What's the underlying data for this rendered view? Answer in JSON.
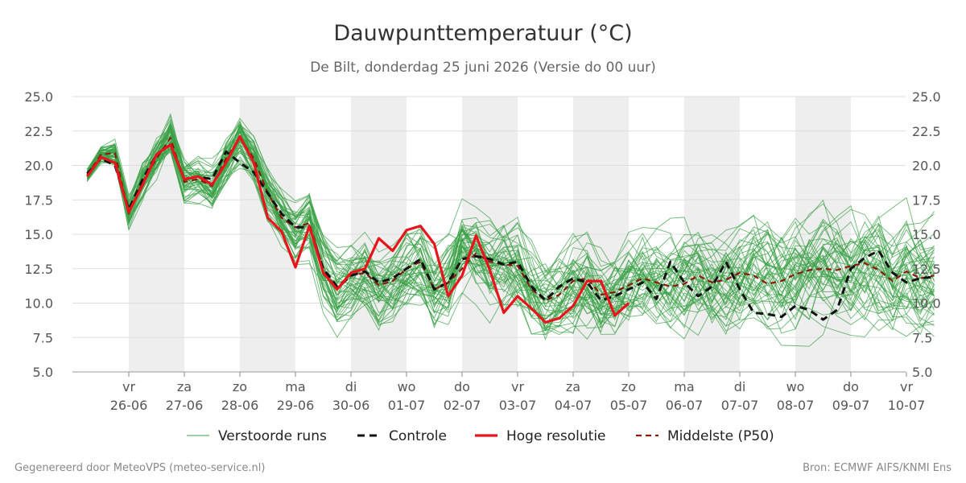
{
  "title": "Dauwpunttemperatuur (°C)",
  "subtitle": "De Bilt, donderdag 25 juni 2026 (Versie do 00 uur)",
  "footer": {
    "left": "Gegenereerd door MeteoVPS (meteo-service.nl)",
    "right": "Bron: ECMWF AIFS/KNMI Ens"
  },
  "chart_data": {
    "type": "line",
    "ylim": [
      5.0,
      25.0
    ],
    "yticks": [
      "5.0",
      "7.5",
      "10.0",
      "12.5",
      "15.0",
      "17.5",
      "20.0",
      "22.5",
      "25.0"
    ],
    "x_unit": "days from 25-06 00 UTC",
    "xlim": [
      0.2,
      15.5
    ],
    "xticks": [
      {
        "day": "vr",
        "date": "26-06"
      },
      {
        "day": "za",
        "date": "27-06"
      },
      {
        "day": "zo",
        "date": "28-06"
      },
      {
        "day": "ma",
        "date": "29-06"
      },
      {
        "day": "di",
        "date": "30-06"
      },
      {
        "day": "wo",
        "date": "01-07"
      },
      {
        "day": "do",
        "date": "02-07"
      },
      {
        "day": "vr",
        "date": "03-07"
      },
      {
        "day": "za",
        "date": "04-07"
      },
      {
        "day": "zo",
        "date": "05-07"
      },
      {
        "day": "ma",
        "date": "06-07"
      },
      {
        "day": "di",
        "date": "07-07"
      },
      {
        "day": "wo",
        "date": "08-07"
      },
      {
        "day": "do",
        "date": "09-07"
      },
      {
        "day": "vr",
        "date": "10-07"
      }
    ],
    "grid": true,
    "shaded_days": [
      "za 27-06",
      "ma 29-06",
      "wo 01-07",
      "vr 03-07",
      "zo 05-07",
      "di 07-07",
      "do 09-07"
    ],
    "legend": {
      "placement": "bottom",
      "entries": [
        {
          "label": "Verstoorde runs",
          "color": "#3aa046",
          "style": "thin"
        },
        {
          "label": "Controle",
          "color": "#111111",
          "style": "dashed"
        },
        {
          "label": "Hoge resolutie",
          "color": "#e8141c",
          "style": "solid-thick"
        },
        {
          "label": "Middelste (P50)",
          "color": "#8b1a0e",
          "style": "dashed"
        }
      ]
    },
    "ensemble_members": 50,
    "ensemble_color": "#3aa046",
    "ensemble_reference_x": [
      0.25,
      0.5,
      0.75,
      1.0,
      1.25,
      1.5,
      1.75,
      2.0,
      2.25,
      2.5,
      2.75,
      3.0,
      3.25,
      3.5,
      3.75,
      4.0,
      4.25,
      4.5,
      4.75,
      5.0,
      5.25,
      5.5,
      5.75,
      6.0,
      6.25,
      6.5,
      6.75,
      7.0,
      7.25,
      7.5,
      7.75,
      8.0,
      8.25,
      8.5,
      8.75,
      9.0,
      9.25,
      9.5,
      9.75,
      10.0,
      10.25,
      10.5,
      10.75,
      11.0,
      11.25,
      11.5,
      11.75,
      12.0,
      12.25,
      12.5,
      12.75,
      13.0,
      13.25,
      13.5,
      13.75,
      14.0,
      14.25,
      14.5,
      14.75,
      15.0,
      15.25,
      15.5
    ],
    "ensemble_reference_y": [
      19.3,
      20.8,
      20.9,
      16.5,
      18.8,
      20.5,
      22.0,
      18.8,
      19.0,
      18.5,
      20.5,
      22.0,
      20.5,
      18.0,
      16.2,
      15.0,
      15.8,
      12.5,
      11.0,
      11.8,
      12.2,
      11.0,
      11.5,
      12.5,
      12.8,
      11.0,
      11.5,
      14.0,
      13.5,
      12.5,
      12.5,
      12.5,
      11.0,
      10.0,
      10.2,
      11.2,
      11.5,
      10.5,
      10.8,
      11.3,
      11.8,
      11.5,
      11.2,
      11.5,
      12.0,
      11.5,
      11.7,
      11.8,
      12.3,
      12.0,
      11.5,
      11.8,
      12.2,
      12.5,
      12.5,
      12.4,
      12.7,
      12.4,
      11.9,
      12.4,
      11.9,
      12.0
    ],
    "ensemble_spread": [
      0.4,
      0.5,
      0.7,
      0.9,
      1.0,
      1.1,
      1.2,
      1.2,
      1.2,
      1.2,
      1.3,
      1.4,
      1.4,
      1.4,
      1.5,
      1.5,
      1.6,
      1.7,
      1.8,
      1.9,
      2.0,
      2.0,
      2.0,
      2.0,
      2.1,
      2.1,
      2.2,
      2.3,
      2.3,
      2.4,
      2.4,
      2.4,
      2.4,
      2.5,
      2.5,
      2.5,
      2.5,
      2.5,
      2.5,
      2.6,
      2.6,
      2.6,
      2.6,
      2.6,
      2.6,
      2.6,
      2.7,
      2.7,
      2.7,
      2.7,
      2.7,
      2.8,
      2.8,
      2.8,
      2.8,
      2.8,
      2.8,
      2.9,
      2.9,
      2.9,
      2.9,
      2.9
    ],
    "series": [
      {
        "name": "Controle",
        "color": "#111111",
        "x": [
          0.25,
          0.5,
          0.75,
          1.0,
          1.25,
          1.5,
          1.75,
          2.0,
          2.25,
          2.5,
          2.75,
          3.0,
          3.25,
          3.5,
          3.75,
          4.0,
          4.25,
          4.5,
          4.75,
          5.0,
          5.25,
          5.5,
          5.75,
          6.0,
          6.25,
          6.5,
          6.75,
          7.0,
          7.25,
          7.5,
          7.75,
          8.0,
          8.25,
          8.5,
          8.75,
          9.0,
          9.25,
          9.5,
          9.75,
          10.0,
          10.25,
          10.5,
          10.75,
          11.0,
          11.25,
          11.5,
          11.75,
          12.0,
          12.25,
          12.5,
          12.75,
          13.0,
          13.25,
          13.5,
          13.75,
          14.0,
          14.25,
          14.5,
          14.75,
          15.0,
          15.25,
          15.5
        ],
        "y": [
          19.4,
          20.5,
          20.0,
          16.8,
          19.0,
          20.8,
          21.5,
          19.0,
          19.2,
          19.0,
          21.0,
          20.2,
          19.5,
          18.0,
          16.5,
          15.5,
          15.5,
          12.5,
          11.2,
          12.0,
          12.3,
          11.5,
          11.8,
          12.5,
          13.2,
          11.0,
          11.5,
          13.2,
          13.4,
          13.2,
          12.8,
          13.0,
          11.2,
          10.2,
          11.2,
          11.8,
          11.5,
          10.2,
          10.5,
          11.0,
          11.5,
          10.3,
          13.0,
          11.5,
          10.5,
          11.2,
          13.0,
          11.0,
          9.3,
          9.2,
          9.0,
          9.8,
          9.5,
          8.8,
          9.5,
          12.5,
          13.3,
          13.8,
          12.2,
          11.5,
          11.8,
          11.9
        ]
      },
      {
        "name": "Hoge resolutie",
        "color": "#e8141c",
        "x": [
          0.25,
          0.5,
          0.75,
          1.0,
          1.25,
          1.5,
          1.75,
          2.0,
          2.25,
          2.5,
          2.75,
          3.0,
          3.25,
          3.5,
          3.75,
          4.0,
          4.25,
          4.5,
          4.75,
          5.0,
          5.25,
          5.5,
          5.75,
          6.0,
          6.25,
          6.5,
          6.75,
          7.0,
          7.25,
          7.5,
          7.75,
          8.0,
          8.25,
          8.5,
          8.75,
          9.0,
          9.25,
          9.5,
          9.75,
          10.0
        ],
        "y": [
          19.2,
          20.6,
          20.2,
          16.6,
          18.6,
          20.8,
          21.5,
          19.0,
          19.2,
          18.6,
          20.2,
          22.1,
          20.2,
          16.2,
          15.2,
          12.6,
          15.6,
          12.2,
          11.0,
          12.2,
          12.5,
          14.7,
          13.8,
          15.3,
          15.6,
          14.3,
          10.5,
          12.0,
          14.9,
          12.4,
          9.3,
          10.5,
          9.6,
          8.6,
          8.9,
          9.8,
          11.6,
          11.6,
          9.1,
          10.0
        ]
      },
      {
        "name": "Middelste (P50)",
        "color": "#8b1a0e",
        "x": [
          0.25,
          0.5,
          0.75,
          1.0,
          1.25,
          1.5,
          1.75,
          2.0,
          2.25,
          2.5,
          2.75,
          3.0,
          3.25,
          3.5,
          3.75,
          4.0,
          4.25,
          4.5,
          4.75,
          5.0,
          5.25,
          5.5,
          5.75,
          6.0,
          6.25,
          6.5,
          6.75,
          7.0,
          7.25,
          7.5,
          7.75,
          8.0,
          8.25,
          8.5,
          8.75,
          9.0,
          9.25,
          9.5,
          9.75,
          10.0,
          10.25,
          10.5,
          10.75,
          11.0,
          11.25,
          11.5,
          11.75,
          12.0,
          12.25,
          12.5,
          12.75,
          13.0,
          13.25,
          13.5,
          13.75,
          14.0,
          14.25,
          14.5,
          14.75,
          15.0,
          15.25,
          15.5
        ],
        "y": [
          19.3,
          20.8,
          20.9,
          16.5,
          18.8,
          20.5,
          22.0,
          18.8,
          19.0,
          18.5,
          20.5,
          22.0,
          20.5,
          18.0,
          16.2,
          15.5,
          15.8,
          12.5,
          11.0,
          12.0,
          12.2,
          11.3,
          11.6,
          12.5,
          13.0,
          11.0,
          11.5,
          12.5,
          13.6,
          13.0,
          12.8,
          12.7,
          11.0,
          10.2,
          10.6,
          11.6,
          11.8,
          10.6,
          10.8,
          11.3,
          11.8,
          11.5,
          11.2,
          11.4,
          12.0,
          11.5,
          11.7,
          12.2,
          12.0,
          11.4,
          11.6,
          12.1,
          12.4,
          12.5,
          12.4,
          12.7,
          12.9,
          12.4,
          11.6,
          12.3,
          11.8,
          12.0
        ]
      }
    ]
  }
}
